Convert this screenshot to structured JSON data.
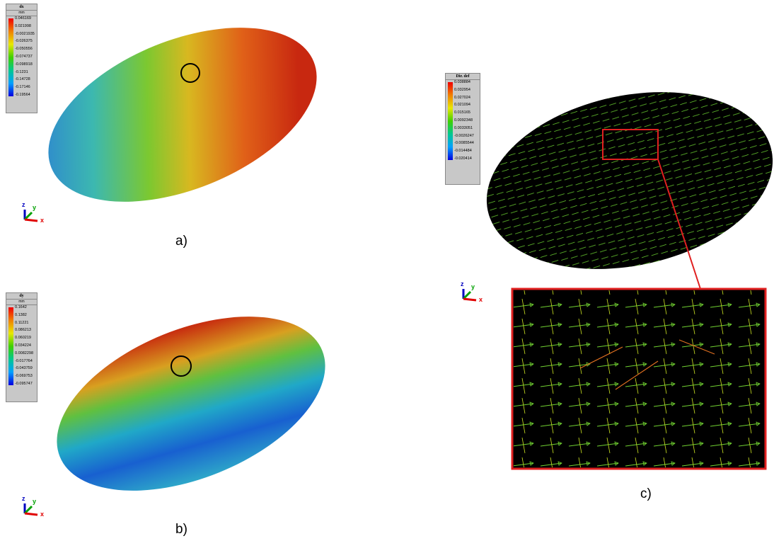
{
  "panels": [
    {
      "label": "a)",
      "legend": {
        "title": "dx",
        "unit": "mm",
        "values": [
          "0.046169",
          "0.021998",
          "-0.0021935",
          "-0.026375",
          "-0.050556",
          "-0.074737",
          "-0.098918",
          "-0.1231",
          "-0.14728",
          "-0.17146",
          "-0.19564"
        ]
      },
      "axes": [
        "z",
        "y",
        "x"
      ]
    },
    {
      "label": "b)",
      "legend": {
        "title": "dy",
        "unit": "mm",
        "values": [
          "0.1642",
          "0.1382",
          "0.11221",
          "0.086213",
          "0.060219",
          "0.034224",
          "0.0082298",
          "-0.017764",
          "-0.043759",
          "-0.069753",
          "-0.095747"
        ]
      },
      "axes": [
        "z",
        "y",
        "x"
      ]
    },
    {
      "label": "c)",
      "legend": {
        "title": "Dir. def",
        "values": [
          "0.038884",
          "0.032954",
          "0.027024",
          "0.021094",
          "0.015165",
          "0.0092348",
          "0.0033051",
          "-0.0026247",
          "-0.0085544",
          "-0.014484",
          "-0.020414"
        ]
      },
      "axes": [
        "z",
        "y",
        "x"
      ]
    }
  ]
}
